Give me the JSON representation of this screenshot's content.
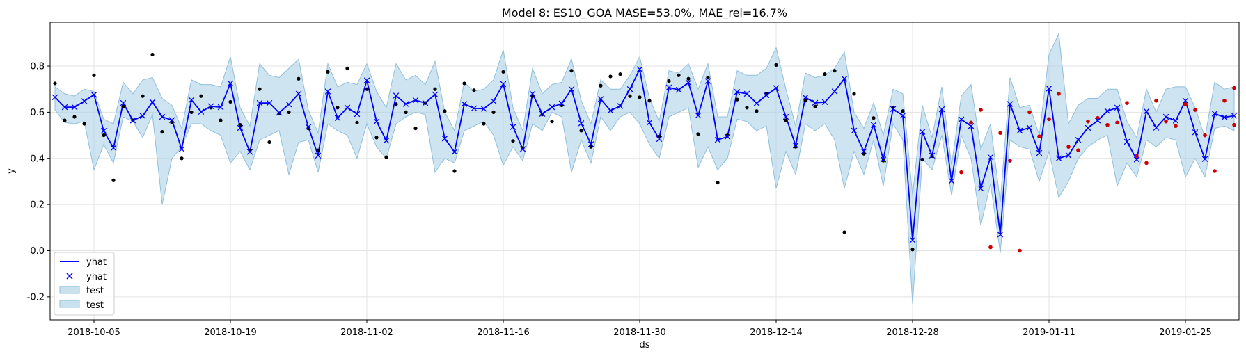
{
  "chart_data": {
    "type": "line",
    "title": "Model 8: ES10_GOA MASE=53.0%, MAE_rel=16.7%",
    "xlabel": "ds",
    "ylabel": "y",
    "x_start": "2018-10-01",
    "x_end": "2019-01-30",
    "ylim": [
      -0.3,
      0.99
    ],
    "x_ticks": [
      "2018-10-05",
      "2018-10-19",
      "2018-11-02",
      "2018-11-16",
      "2018-11-30",
      "2018-12-14",
      "2018-12-28",
      "2019-01-11",
      "2019-01-25"
    ],
    "y_ticks": [
      -0.2,
      0.0,
      0.2,
      0.4,
      0.6,
      0.8
    ],
    "grid": true,
    "legend_position": "bottom-left",
    "legend": [
      {
        "label": "yhat",
        "kind": "line"
      },
      {
        "label": "yhat",
        "kind": "marker"
      },
      {
        "label": "test",
        "kind": "band"
      },
      {
        "label": "test",
        "kind": "band"
      }
    ],
    "colors": {
      "yhat": "#0000ff",
      "band": "#a6cee3",
      "actual": "#000000",
      "test_points": "#cc0000"
    },
    "series": [
      {
        "name": "yhat",
        "x": [
          "2018-10-01",
          "2018-10-02",
          "2018-10-03",
          "2018-10-04",
          "2018-10-05",
          "2018-10-06",
          "2018-10-07",
          "2018-10-08",
          "2018-10-09",
          "2018-10-10",
          "2018-10-11",
          "2018-10-12",
          "2018-10-13",
          "2018-10-14",
          "2018-10-15",
          "2018-10-16",
          "2018-10-17",
          "2018-10-18",
          "2018-10-19",
          "2018-10-20",
          "2018-10-21",
          "2018-10-22",
          "2018-10-23",
          "2018-10-24",
          "2018-10-25",
          "2018-10-26",
          "2018-10-27",
          "2018-10-28",
          "2018-10-29",
          "2018-10-30",
          "2018-10-31",
          "2018-11-01",
          "2018-11-02",
          "2018-11-03",
          "2018-11-04",
          "2018-11-05",
          "2018-11-06",
          "2018-11-07",
          "2018-11-08",
          "2018-11-09",
          "2018-11-10",
          "2018-11-11",
          "2018-11-12",
          "2018-11-13",
          "2018-11-14",
          "2018-11-15",
          "2018-11-16",
          "2018-11-17",
          "2018-11-18",
          "2018-11-19",
          "2018-11-20",
          "2018-11-21",
          "2018-11-22",
          "2018-11-23",
          "2018-11-24",
          "2018-11-25",
          "2018-11-26",
          "2018-11-27",
          "2018-11-28",
          "2018-11-29",
          "2018-11-30",
          "2018-12-01",
          "2018-12-02",
          "2018-12-03",
          "2018-12-04",
          "2018-12-05",
          "2018-12-06",
          "2018-12-07",
          "2018-12-08",
          "2018-12-09",
          "2018-12-10",
          "2018-12-11",
          "2018-12-12",
          "2018-12-13",
          "2018-12-14",
          "2018-12-15",
          "2018-12-16",
          "2018-12-17",
          "2018-12-18",
          "2018-12-19",
          "2018-12-20",
          "2018-12-21",
          "2018-12-22",
          "2018-12-23",
          "2018-12-24",
          "2018-12-25",
          "2018-12-26",
          "2018-12-27",
          "2018-12-28",
          "2018-12-29",
          "2018-12-30",
          "2018-12-31",
          "2019-01-01",
          "2019-01-02",
          "2019-01-03",
          "2019-01-04",
          "2019-01-05",
          "2019-01-06",
          "2019-01-07",
          "2019-01-08",
          "2019-01-09",
          "2019-01-10",
          "2019-01-11",
          "2019-01-12",
          "2019-01-13",
          "2019-01-14",
          "2019-01-15",
          "2019-01-16",
          "2019-01-17",
          "2019-01-18",
          "2019-01-19",
          "2019-01-20",
          "2019-01-21",
          "2019-01-22",
          "2019-01-23",
          "2019-01-24",
          "2019-01-25",
          "2019-01-26",
          "2019-01-27",
          "2019-01-28",
          "2019-01-29",
          "2019-01-30"
        ],
        "values": [
          0.665,
          0.622,
          0.622,
          0.648,
          0.676,
          0.519,
          0.445,
          0.64,
          0.564,
          0.584,
          0.644,
          0.58,
          0.566,
          0.44,
          0.653,
          0.602,
          0.626,
          0.622,
          0.725,
          0.532,
          0.428,
          0.64,
          0.64,
          0.598,
          0.634,
          0.68,
          0.536,
          0.412,
          0.69,
          0.575,
          0.62,
          0.592,
          0.738,
          0.56,
          0.477,
          0.672,
          0.636,
          0.652,
          0.64,
          0.677,
          0.486,
          0.428,
          0.636,
          0.617,
          0.615,
          0.648,
          0.722,
          0.536,
          0.44,
          0.68,
          0.593,
          0.622,
          0.638,
          0.7,
          0.552,
          0.461,
          0.657,
          0.607,
          0.627,
          0.7,
          0.786,
          0.555,
          0.484,
          0.707,
          0.697,
          0.728,
          0.586,
          0.735,
          0.48,
          0.494,
          0.688,
          0.68,
          0.639,
          0.674,
          0.705,
          0.58,
          0.456,
          0.664,
          0.641,
          0.644,
          0.69,
          0.745,
          0.52,
          0.43,
          0.545,
          0.395,
          0.614,
          0.586,
          0.046,
          0.515,
          0.412,
          0.613,
          0.302,
          0.569,
          0.54,
          0.27,
          0.405,
          0.07,
          0.636,
          0.52,
          0.533,
          0.423,
          0.703,
          0.4,
          0.413,
          0.48,
          0.532,
          0.564,
          0.605,
          0.62,
          0.472,
          0.395,
          0.604,
          0.533,
          0.58,
          0.563,
          0.65,
          0.513,
          0.397,
          0.594,
          0.578,
          0.585
        ],
        "lower": [
          0.61,
          0.555,
          0.55,
          0.56,
          0.35,
          0.46,
          0.38,
          0.58,
          0.56,
          0.49,
          0.59,
          0.2,
          0.4,
          0.45,
          0.55,
          0.55,
          0.52,
          0.5,
          0.38,
          0.43,
          0.35,
          0.48,
          0.5,
          0.52,
          0.33,
          0.47,
          0.48,
          0.34,
          0.55,
          0.52,
          0.5,
          0.4,
          0.55,
          0.45,
          0.4,
          0.55,
          0.58,
          0.6,
          0.59,
          0.34,
          0.4,
          0.38,
          0.52,
          0.54,
          0.56,
          0.5,
          0.37,
          0.45,
          0.39,
          0.55,
          0.52,
          0.6,
          0.58,
          0.34,
          0.48,
          0.38,
          0.58,
          0.52,
          0.58,
          0.6,
          0.55,
          0.46,
          0.4,
          0.58,
          0.6,
          0.62,
          0.36,
          0.45,
          0.35,
          0.4,
          0.57,
          0.56,
          0.52,
          0.54,
          0.27,
          0.43,
          0.33,
          0.55,
          0.52,
          0.55,
          0.48,
          0.27,
          0.43,
          0.33,
          0.48,
          0.28,
          0.55,
          0.48,
          -0.23,
          0.4,
          0.35,
          0.5,
          0.24,
          0.5,
          0.4,
          0.11,
          0.29,
          -0.01,
          0.48,
          0.45,
          0.44,
          0.3,
          0.43,
          0.23,
          0.3,
          0.4,
          0.45,
          0.48,
          0.5,
          0.28,
          0.38,
          0.32,
          0.48,
          0.45,
          0.49,
          0.48,
          0.32,
          0.4,
          0.32,
          0.53,
          0.54,
          0.52
        ],
        "upper": [
          0.71,
          0.68,
          0.67,
          0.7,
          0.69,
          0.57,
          0.55,
          0.73,
          0.68,
          0.74,
          0.75,
          0.66,
          0.63,
          0.53,
          0.74,
          0.72,
          0.72,
          0.71,
          0.84,
          0.62,
          0.54,
          0.81,
          0.76,
          0.75,
          0.79,
          0.83,
          0.61,
          0.51,
          0.81,
          0.71,
          0.73,
          0.72,
          0.81,
          0.69,
          0.62,
          0.81,
          0.74,
          0.76,
          0.72,
          0.82,
          0.6,
          0.52,
          0.73,
          0.69,
          0.7,
          0.74,
          0.87,
          0.62,
          0.52,
          0.79,
          0.68,
          0.72,
          0.73,
          0.83,
          0.65,
          0.55,
          0.74,
          0.7,
          0.7,
          0.76,
          0.84,
          0.66,
          0.56,
          0.78,
          0.77,
          0.81,
          0.7,
          0.81,
          0.58,
          0.58,
          0.78,
          0.76,
          0.76,
          0.79,
          0.88,
          0.7,
          0.54,
          0.77,
          0.75,
          0.76,
          0.79,
          0.86,
          0.6,
          0.53,
          0.64,
          0.5,
          0.7,
          0.68,
          0.24,
          0.63,
          0.49,
          0.71,
          0.37,
          0.67,
          0.72,
          0.44,
          0.55,
          0.21,
          0.75,
          0.62,
          0.63,
          0.5,
          0.85,
          0.94,
          0.55,
          0.63,
          0.66,
          0.66,
          0.7,
          0.7,
          0.56,
          0.49,
          0.7,
          0.6,
          0.7,
          0.71,
          0.71,
          0.62,
          0.49,
          0.73,
          0.7,
          0.71
        ]
      },
      {
        "name": "y",
        "x": [
          "2018-10-01",
          "2018-10-02",
          "2018-10-03",
          "2018-10-04",
          "2018-10-05",
          "2018-10-06",
          "2018-10-07",
          "2018-10-08",
          "2018-10-09",
          "2018-10-10",
          "2018-10-11",
          "2018-10-12",
          "2018-10-13",
          "2018-10-14",
          "2018-10-15",
          "2018-10-16",
          "2018-10-17",
          "2018-10-18",
          "2018-10-19",
          "2018-10-20",
          "2018-10-21",
          "2018-10-22",
          "2018-10-23",
          "2018-10-24",
          "2018-10-25",
          "2018-10-26",
          "2018-10-27",
          "2018-10-28",
          "2018-10-29",
          "2018-10-30",
          "2018-10-31",
          "2018-11-01",
          "2018-11-02",
          "2018-11-03",
          "2018-11-04",
          "2018-11-05",
          "2018-11-06",
          "2018-11-07",
          "2018-11-08",
          "2018-11-09",
          "2018-11-10",
          "2018-11-11",
          "2018-11-12",
          "2018-11-13",
          "2018-11-14",
          "2018-11-15",
          "2018-11-16",
          "2018-11-17",
          "2018-11-18",
          "2018-11-19",
          "2018-11-20",
          "2018-11-21",
          "2018-11-22",
          "2018-11-23",
          "2018-11-24",
          "2018-11-25",
          "2018-11-26",
          "2018-11-27",
          "2018-11-28",
          "2018-11-29",
          "2018-11-30",
          "2018-12-01",
          "2018-12-02",
          "2018-12-03",
          "2018-12-04",
          "2018-12-05",
          "2018-12-06",
          "2018-12-07",
          "2018-12-08",
          "2018-12-09",
          "2018-12-10",
          "2018-12-11",
          "2018-12-12",
          "2018-12-13",
          "2018-12-14",
          "2018-12-15",
          "2018-12-16",
          "2018-12-17",
          "2018-12-18",
          "2018-12-19",
          "2018-12-20",
          "2018-12-21",
          "2018-12-22",
          "2018-12-23",
          "2018-12-24",
          "2018-12-25",
          "2018-12-26",
          "2018-12-27",
          "2018-12-28",
          "2018-12-29",
          "2018-12-30"
        ],
        "values": [
          0.725,
          0.565,
          0.58,
          0.55,
          0.76,
          0.5,
          0.305,
          0.625,
          0.565,
          0.67,
          0.85,
          0.515,
          0.555,
          0.4,
          0.6,
          0.67,
          0.62,
          0.565,
          0.645,
          0.545,
          0.435,
          0.7,
          0.47,
          0.595,
          0.6,
          0.745,
          0.53,
          0.435,
          0.775,
          0.62,
          0.79,
          0.555,
          0.7,
          0.49,
          0.405,
          0.635,
          0.6,
          0.53,
          0.64,
          0.7,
          0.605,
          0.345,
          0.725,
          0.695,
          0.55,
          0.6,
          0.775,
          0.475,
          0.445,
          0.67,
          0.59,
          0.56,
          0.63,
          0.78,
          0.52,
          0.45,
          0.715,
          0.755,
          0.765,
          0.67,
          0.665,
          0.65,
          0.495,
          0.735,
          0.76,
          0.745,
          0.505,
          0.75,
          0.295,
          0.5,
          0.655,
          0.62,
          0.605,
          0.68,
          0.805,
          0.565,
          0.45,
          0.65,
          0.625,
          0.765,
          0.78,
          0.08,
          0.68,
          0.42,
          0.575,
          0.39,
          0.62,
          0.605,
          0.005,
          0.395,
          0.41
        ]
      },
      {
        "name": "test",
        "x": [
          "2019-01-02",
          "2019-01-03",
          "2019-01-04",
          "2019-01-06",
          "2019-01-07",
          "2019-01-08",
          "2019-01-09",
          "2019-01-10",
          "2019-01-11",
          "2019-01-12",
          "2019-01-13",
          "2019-01-14",
          "2019-01-15",
          "2019-01-16",
          "2019-01-17",
          "2019-01-18",
          "2019-01-19",
          "2019-01-20",
          "2019-01-21",
          "2019-01-22",
          "2019-01-23",
          "2019-01-24",
          "2019-01-25",
          "2019-01-26",
          "2019-01-27",
          "2019-01-28",
          "2019-01-29",
          "2019-01-30"
        ],
        "values": [
          0.34,
          0.555,
          0.61,
          0.51,
          0.39,
          0.0,
          0.6,
          0.495,
          0.57,
          0.68,
          0.45,
          0.435,
          0.56,
          0.575,
          0.545,
          0.555,
          0.64,
          0.41,
          0.38,
          0.65,
          0.56,
          0.54,
          0.635,
          0.61,
          0.5,
          0.345,
          0.65,
          0.545
        ],
        "x_extra": [
          "2019-01-05",
          "2019-01-30"
        ],
        "values_extra": [
          0.015,
          0.705
        ]
      }
    ]
  }
}
